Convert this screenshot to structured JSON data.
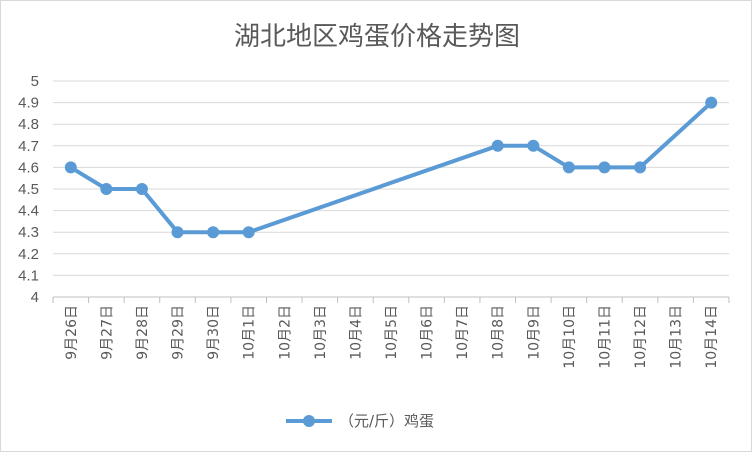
{
  "chart_data": {
    "type": "line",
    "title": "湖北地区鸡蛋价格走势图",
    "categories": [
      "9月26日",
      "9月27日",
      "9月28日",
      "9月29日",
      "9月30日",
      "10月1日",
      "10月2日",
      "10月3日",
      "10月4日",
      "10月5日",
      "10月6日",
      "10月7日",
      "10月8日",
      "10月9日",
      "10月10日",
      "10月11日",
      "10月12日",
      "10月13日",
      "10月14日"
    ],
    "series": [
      {
        "name": "（元/斤）鸡蛋",
        "values": [
          4.6,
          4.5,
          4.5,
          4.3,
          4.3,
          4.3,
          null,
          null,
          null,
          null,
          null,
          null,
          4.7,
          4.7,
          4.6,
          4.6,
          4.6,
          null,
          4.9
        ],
        "color": "#5b9bd5"
      }
    ],
    "yticks": [
      "4",
      "4.1",
      "4.2",
      "4.3",
      "4.4",
      "4.5",
      "4.6",
      "4.7",
      "4.8",
      "4.9",
      "5"
    ],
    "ylim": [
      4,
      5
    ],
    "gap_handling": "connect",
    "grid": true,
    "legend_position": "bottom"
  }
}
